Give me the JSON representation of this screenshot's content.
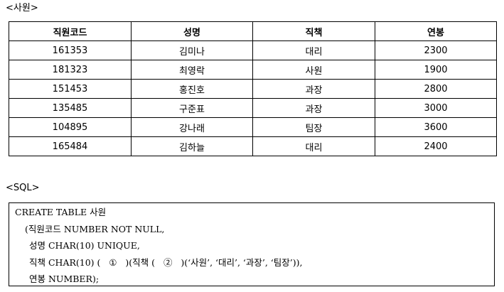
{
  "table_caption": "<사원>",
  "table": {
    "headers": [
      "직원코드",
      "성명",
      "직책",
      "연봉"
    ],
    "rows": [
      [
        "161353",
        "김미나",
        "대리",
        "2300"
      ],
      [
        "181323",
        "최영락",
        "사원",
        "1900"
      ],
      [
        "151453",
        "홍진호",
        "과장",
        "2800"
      ],
      [
        "135485",
        "구준표",
        "과장",
        "3000"
      ],
      [
        "104895",
        "강나래",
        "팀장",
        "3600"
      ],
      [
        "165484",
        "김하늘",
        "대리",
        "2400"
      ]
    ]
  },
  "sql_caption": "<SQL>",
  "sql": {
    "lines": [
      "CREATE TABLE 사원",
      "(직원코드 NUMBER NOT NULL,",
      "성명 CHAR(10) UNIQUE,",
      "직책 CHAR(10) (   ①   )(직책 (   ②   )(‘사원’, ‘대리’, ‘과장’, ‘팀장’)),",
      "연봉 NUMBER);"
    ]
  }
}
